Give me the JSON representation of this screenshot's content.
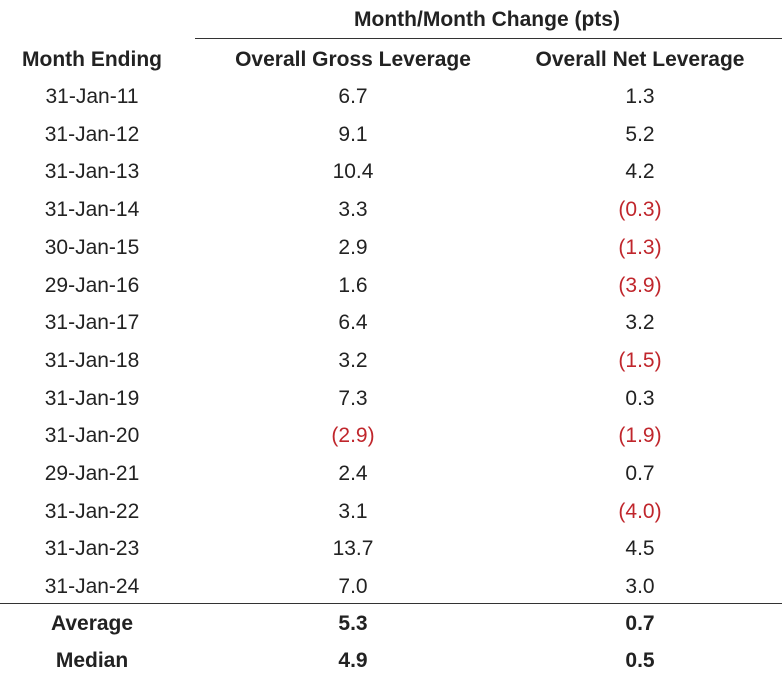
{
  "table": {
    "group_header": "Month/Month Change (pts)",
    "columns": [
      "Month Ending",
      "Overall Gross Leverage",
      "Overall Net Leverage"
    ],
    "rows": [
      [
        "31-Jan-11",
        "6.7",
        "1.3"
      ],
      [
        "31-Jan-12",
        "9.1",
        "5.2"
      ],
      [
        "31-Jan-13",
        "10.4",
        "4.2"
      ],
      [
        "31-Jan-14",
        "3.3",
        "(0.3)"
      ],
      [
        "30-Jan-15",
        "2.9",
        "(1.3)"
      ],
      [
        "29-Jan-16",
        "1.6",
        "(3.9)"
      ],
      [
        "31-Jan-17",
        "6.4",
        "3.2"
      ],
      [
        "31-Jan-18",
        "3.2",
        "(1.5)"
      ],
      [
        "31-Jan-19",
        "7.3",
        "0.3"
      ],
      [
        "31-Jan-20",
        "(2.9)",
        "(1.9)"
      ],
      [
        "29-Jan-21",
        "2.4",
        "0.7"
      ],
      [
        "31-Jan-22",
        "3.1",
        "(4.0)"
      ],
      [
        "31-Jan-23",
        "13.7",
        "4.5"
      ],
      [
        "31-Jan-24",
        "7.0",
        "3.0"
      ]
    ],
    "summary": [
      [
        "Average",
        "5.3",
        "0.7"
      ],
      [
        "Median",
        "4.9",
        "0.5"
      ]
    ],
    "negative_color": "#c0262c"
  }
}
